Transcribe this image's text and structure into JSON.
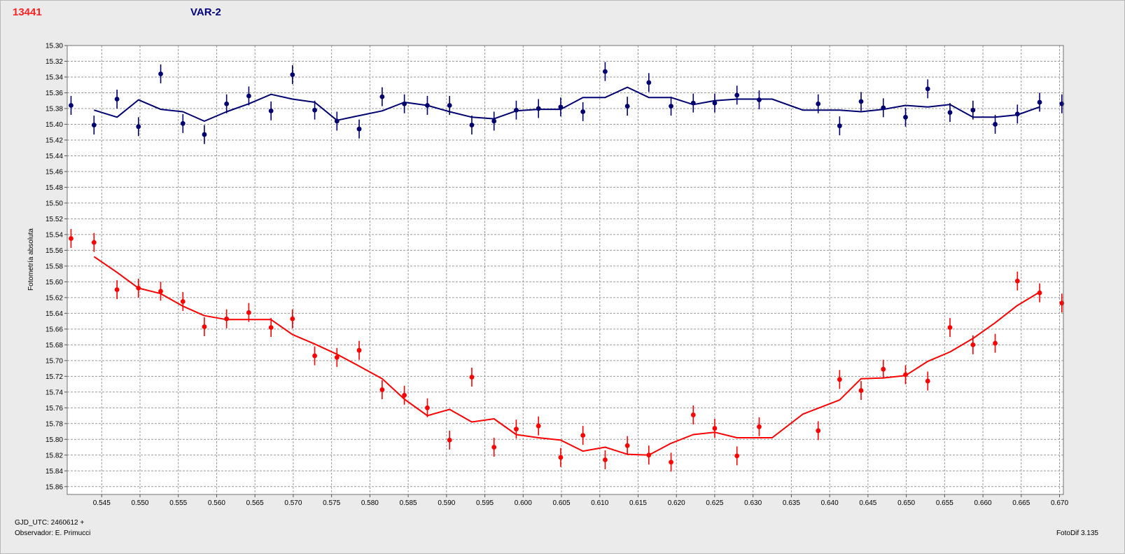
{
  "header": {
    "left_title": "13441",
    "right_title": "VAR-2"
  },
  "footer": {
    "date_label": "GJD_UTC: 2460612 +",
    "observer_label": "Observador: E. Primucci",
    "version_label": "FotoDif 3.135"
  },
  "colors": {
    "title_left": "#ff2020",
    "title_right": "#000080",
    "series_blue": "#000070",
    "series_red": "#ff0000",
    "plot_bg": "#ffffff",
    "grid": "#9c9c9c"
  },
  "chart_data": {
    "type": "scatter",
    "title": "",
    "xlabel": "",
    "ylabel": "Fotometría absoluta",
    "xlim": [
      0.5405,
      0.6705
    ],
    "ylim": [
      15.3,
      15.87
    ],
    "y_inverted": true,
    "grid": true,
    "x_ticks": [
      0.545,
      0.55,
      0.555,
      0.56,
      0.565,
      0.57,
      0.575,
      0.58,
      0.585,
      0.59,
      0.595,
      0.6,
      0.605,
      0.61,
      0.615,
      0.62,
      0.625,
      0.63,
      0.635,
      0.64,
      0.645,
      0.65,
      0.655,
      0.66,
      0.665,
      0.67
    ],
    "x_tick_labels": [
      "0.545",
      "0.550",
      "0.555",
      "0.560",
      "0.565",
      "0.570",
      "0.575",
      "0.580",
      "0.585",
      "0.590",
      "0.595",
      "0.600",
      "0.605",
      "0.610",
      "0.615",
      "0.620",
      "0.625",
      "0.630",
      "0.635",
      "0.640",
      "0.645",
      "0.650",
      "0.655",
      "0.660",
      "0.665",
      "0.670"
    ],
    "y_ticks": [
      15.3,
      15.32,
      15.34,
      15.36,
      15.38,
      15.4,
      15.42,
      15.44,
      15.46,
      15.48,
      15.5,
      15.52,
      15.54,
      15.56,
      15.58,
      15.6,
      15.62,
      15.64,
      15.66,
      15.68,
      15.7,
      15.72,
      15.74,
      15.76,
      15.78,
      15.8,
      15.82,
      15.84,
      15.86
    ],
    "y_tick_labels": [
      "15.30",
      "15.32",
      "15.34",
      "15.36",
      "15.38",
      "15.40",
      "15.42",
      "15.44",
      "15.46",
      "15.48",
      "15.50",
      "15.52",
      "15.54",
      "15.56",
      "15.58",
      "15.60",
      "15.62",
      "15.64",
      "15.66",
      "15.68",
      "15.70",
      "15.72",
      "15.74",
      "15.76",
      "15.78",
      "15.80",
      "15.82",
      "15.84",
      "15.86"
    ],
    "error_bar": 0.012,
    "series": [
      {
        "color": "#000070",
        "points": [
          {
            "x": 0.541,
            "y": 15.376
          },
          {
            "x": 0.544,
            "y": 15.401
          },
          {
            "x": 0.547,
            "y": 15.368
          },
          {
            "x": 0.5498,
            "y": 15.403
          },
          {
            "x": 0.5527,
            "y": 15.336
          },
          {
            "x": 0.5556,
            "y": 15.399
          },
          {
            "x": 0.5584,
            "y": 15.413
          },
          {
            "x": 0.5613,
            "y": 15.374
          },
          {
            "x": 0.5642,
            "y": 15.364
          },
          {
            "x": 0.5671,
            "y": 15.383
          },
          {
            "x": 0.5699,
            "y": 15.337
          },
          {
            "x": 0.5728,
            "y": 15.382
          },
          {
            "x": 0.5757,
            "y": 15.396
          },
          {
            "x": 0.5786,
            "y": 15.406
          },
          {
            "x": 0.5816,
            "y": 15.365
          },
          {
            "x": 0.5845,
            "y": 15.374
          },
          {
            "x": 0.5875,
            "y": 15.376
          },
          {
            "x": 0.5904,
            "y": 15.376
          },
          {
            "x": 0.5933,
            "y": 15.401
          },
          {
            "x": 0.5962,
            "y": 15.396
          },
          {
            "x": 0.5991,
            "y": 15.382
          },
          {
            "x": 0.602,
            "y": 15.38
          },
          {
            "x": 0.6049,
            "y": 15.378
          },
          {
            "x": 0.6078,
            "y": 15.384
          },
          {
            "x": 0.6107,
            "y": 15.333
          },
          {
            "x": 0.6136,
            "y": 15.377
          },
          {
            "x": 0.6164,
            "y": 15.347
          },
          {
            "x": 0.6193,
            "y": 15.377
          },
          {
            "x": 0.6222,
            "y": 15.373
          },
          {
            "x": 0.625,
            "y": 15.373
          },
          {
            "x": 0.6279,
            "y": 15.363
          },
          {
            "x": 0.6308,
            "y": 15.369
          },
          {
            "x": 0.6385,
            "y": 15.374
          },
          {
            "x": 0.6413,
            "y": 15.402
          },
          {
            "x": 0.6441,
            "y": 15.371
          },
          {
            "x": 0.647,
            "y": 15.379
          },
          {
            "x": 0.6499,
            "y": 15.391
          },
          {
            "x": 0.6528,
            "y": 15.355
          },
          {
            "x": 0.6557,
            "y": 15.385
          },
          {
            "x": 0.6587,
            "y": 15.382
          },
          {
            "x": 0.6616,
            "y": 15.4
          },
          {
            "x": 0.6645,
            "y": 15.387
          },
          {
            "x": 0.6674,
            "y": 15.372
          },
          {
            "x": 0.6703,
            "y": 15.374
          }
        ],
        "line": [
          {
            "x": 0.544,
            "y": 15.382
          },
          {
            "x": 0.547,
            "y": 15.391
          },
          {
            "x": 0.5498,
            "y": 15.369
          },
          {
            "x": 0.5527,
            "y": 15.381
          },
          {
            "x": 0.5556,
            "y": 15.384
          },
          {
            "x": 0.5584,
            "y": 15.396
          },
          {
            "x": 0.5613,
            "y": 15.384
          },
          {
            "x": 0.5642,
            "y": 15.374
          },
          {
            "x": 0.5671,
            "y": 15.362
          },
          {
            "x": 0.5699,
            "y": 15.368
          },
          {
            "x": 0.5728,
            "y": 15.372
          },
          {
            "x": 0.5757,
            "y": 15.395
          },
          {
            "x": 0.5786,
            "y": 15.389
          },
          {
            "x": 0.5816,
            "y": 15.383
          },
          {
            "x": 0.5845,
            "y": 15.372
          },
          {
            "x": 0.5875,
            "y": 15.376
          },
          {
            "x": 0.5904,
            "y": 15.384
          },
          {
            "x": 0.5933,
            "y": 15.391
          },
          {
            "x": 0.5962,
            "y": 15.393
          },
          {
            "x": 0.5991,
            "y": 15.383
          },
          {
            "x": 0.602,
            "y": 15.381
          },
          {
            "x": 0.6049,
            "y": 15.381
          },
          {
            "x": 0.6078,
            "y": 15.366
          },
          {
            "x": 0.6107,
            "y": 15.366
          },
          {
            "x": 0.6136,
            "y": 15.353
          },
          {
            "x": 0.6164,
            "y": 15.366
          },
          {
            "x": 0.6193,
            "y": 15.366
          },
          {
            "x": 0.6222,
            "y": 15.375
          },
          {
            "x": 0.625,
            "y": 15.37
          },
          {
            "x": 0.6279,
            "y": 15.368
          },
          {
            "x": 0.6308,
            "y": 15.368
          },
          {
            "x": 0.6325,
            "y": 15.368
          },
          {
            "x": 0.6365,
            "y": 15.382
          },
          {
            "x": 0.6413,
            "y": 15.382
          },
          {
            "x": 0.6441,
            "y": 15.384
          },
          {
            "x": 0.647,
            "y": 15.381
          },
          {
            "x": 0.6499,
            "y": 15.376
          },
          {
            "x": 0.6528,
            "y": 15.378
          },
          {
            "x": 0.6557,
            "y": 15.375
          },
          {
            "x": 0.6587,
            "y": 15.391
          },
          {
            "x": 0.6616,
            "y": 15.391
          },
          {
            "x": 0.6645,
            "y": 15.388
          },
          {
            "x": 0.6674,
            "y": 15.378
          }
        ]
      },
      {
        "color": "#ff0000",
        "points": [
          {
            "x": 0.541,
            "y": 15.545
          },
          {
            "x": 0.544,
            "y": 15.55
          },
          {
            "x": 0.547,
            "y": 15.61
          },
          {
            "x": 0.5498,
            "y": 15.608
          },
          {
            "x": 0.5527,
            "y": 15.612
          },
          {
            "x": 0.5556,
            "y": 15.625
          },
          {
            "x": 0.5584,
            "y": 15.657
          },
          {
            "x": 0.5613,
            "y": 15.647
          },
          {
            "x": 0.5642,
            "y": 15.639
          },
          {
            "x": 0.5671,
            "y": 15.658
          },
          {
            "x": 0.5699,
            "y": 15.647
          },
          {
            "x": 0.5728,
            "y": 15.694
          },
          {
            "x": 0.5757,
            "y": 15.696
          },
          {
            "x": 0.5786,
            "y": 15.687
          },
          {
            "x": 0.5816,
            "y": 15.737
          },
          {
            "x": 0.5845,
            "y": 15.744
          },
          {
            "x": 0.5875,
            "y": 15.76
          },
          {
            "x": 0.5904,
            "y": 15.801
          },
          {
            "x": 0.5933,
            "y": 15.721
          },
          {
            "x": 0.5962,
            "y": 15.81
          },
          {
            "x": 0.5991,
            "y": 15.787
          },
          {
            "x": 0.602,
            "y": 15.783
          },
          {
            "x": 0.6049,
            "y": 15.823
          },
          {
            "x": 0.6078,
            "y": 15.795
          },
          {
            "x": 0.6107,
            "y": 15.826
          },
          {
            "x": 0.6136,
            "y": 15.808
          },
          {
            "x": 0.6164,
            "y": 15.82
          },
          {
            "x": 0.6193,
            "y": 15.829
          },
          {
            "x": 0.6222,
            "y": 15.769
          },
          {
            "x": 0.625,
            "y": 15.786
          },
          {
            "x": 0.6279,
            "y": 15.821
          },
          {
            "x": 0.6308,
            "y": 15.784
          },
          {
            "x": 0.6385,
            "y": 15.789
          },
          {
            "x": 0.6413,
            "y": 15.724
          },
          {
            "x": 0.6441,
            "y": 15.738
          },
          {
            "x": 0.647,
            "y": 15.711
          },
          {
            "x": 0.6499,
            "y": 15.718
          },
          {
            "x": 0.6528,
            "y": 15.726
          },
          {
            "x": 0.6557,
            "y": 15.658
          },
          {
            "x": 0.6587,
            "y": 15.68
          },
          {
            "x": 0.6616,
            "y": 15.678
          },
          {
            "x": 0.6645,
            "y": 15.599
          },
          {
            "x": 0.6674,
            "y": 15.614
          },
          {
            "x": 0.6703,
            "y": 15.627
          }
        ],
        "line": [
          {
            "x": 0.544,
            "y": 15.568
          },
          {
            "x": 0.547,
            "y": 15.588
          },
          {
            "x": 0.5498,
            "y": 15.608
          },
          {
            "x": 0.5527,
            "y": 15.615
          },
          {
            "x": 0.5556,
            "y": 15.631
          },
          {
            "x": 0.5584,
            "y": 15.643
          },
          {
            "x": 0.5613,
            "y": 15.648
          },
          {
            "x": 0.5642,
            "y": 15.648
          },
          {
            "x": 0.5671,
            "y": 15.648
          },
          {
            "x": 0.5699,
            "y": 15.667
          },
          {
            "x": 0.5728,
            "y": 15.679
          },
          {
            "x": 0.5757,
            "y": 15.692
          },
          {
            "x": 0.5786,
            "y": 15.707
          },
          {
            "x": 0.5816,
            "y": 15.723
          },
          {
            "x": 0.5845,
            "y": 15.749
          },
          {
            "x": 0.5875,
            "y": 15.77
          },
          {
            "x": 0.5904,
            "y": 15.762
          },
          {
            "x": 0.5933,
            "y": 15.778
          },
          {
            "x": 0.5962,
            "y": 15.774
          },
          {
            "x": 0.5991,
            "y": 15.794
          },
          {
            "x": 0.602,
            "y": 15.798
          },
          {
            "x": 0.6049,
            "y": 15.801
          },
          {
            "x": 0.6078,
            "y": 15.815
          },
          {
            "x": 0.6107,
            "y": 15.81
          },
          {
            "x": 0.6136,
            "y": 15.819
          },
          {
            "x": 0.6164,
            "y": 15.82
          },
          {
            "x": 0.6193,
            "y": 15.805
          },
          {
            "x": 0.6222,
            "y": 15.794
          },
          {
            "x": 0.625,
            "y": 15.791
          },
          {
            "x": 0.6279,
            "y": 15.798
          },
          {
            "x": 0.6308,
            "y": 15.798
          },
          {
            "x": 0.6325,
            "y": 15.798
          },
          {
            "x": 0.6365,
            "y": 15.768
          },
          {
            "x": 0.6413,
            "y": 15.75
          },
          {
            "x": 0.6441,
            "y": 15.723
          },
          {
            "x": 0.647,
            "y": 15.722
          },
          {
            "x": 0.6499,
            "y": 15.719
          },
          {
            "x": 0.6528,
            "y": 15.701
          },
          {
            "x": 0.6557,
            "y": 15.689
          },
          {
            "x": 0.6587,
            "y": 15.672
          },
          {
            "x": 0.6616,
            "y": 15.652
          },
          {
            "x": 0.6645,
            "y": 15.63
          },
          {
            "x": 0.6674,
            "y": 15.613
          }
        ]
      }
    ]
  }
}
